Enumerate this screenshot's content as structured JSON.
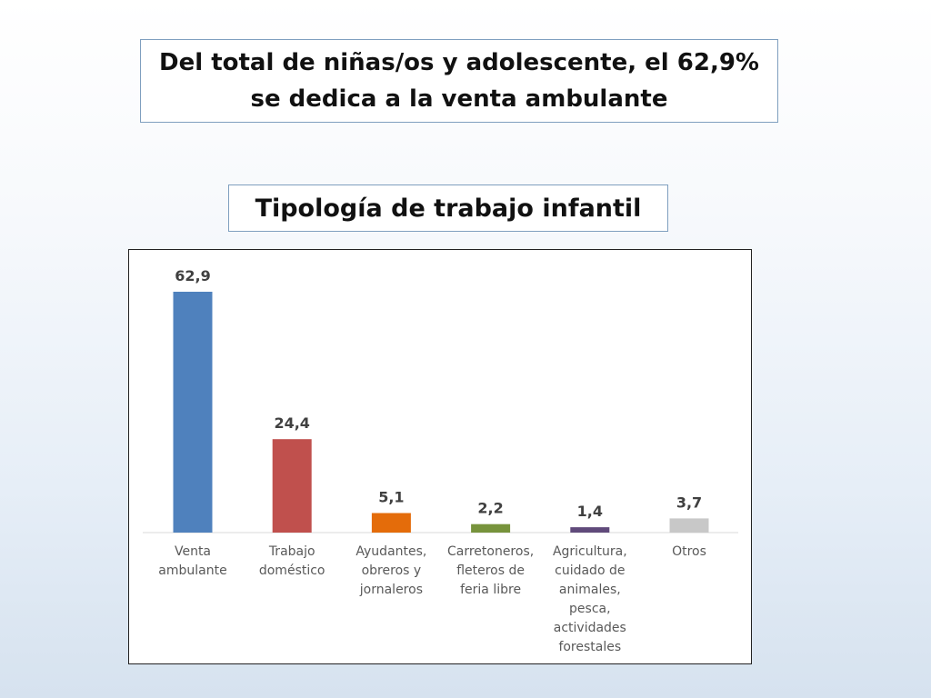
{
  "slide": {
    "headline": "Del total de niñas/os y adolescente, el 62,9% se dedica a la venta ambulante"
  },
  "chart_data": {
    "type": "bar",
    "title": "Tipología de trabajo infantil",
    "categories": [
      "Venta ambulante",
      "Trabajo doméstico",
      "Ayudantes, obreros y jornaleros",
      "Carretoneros, fleteros de feria libre",
      "Agricultura, cuidado de animales, pesca, actividades forestales",
      "Otros"
    ],
    "values": [
      62.9,
      24.4,
      5.1,
      2.2,
      1.4,
      3.7
    ],
    "value_labels": [
      "62,9",
      "24,4",
      "5,1",
      "2,2",
      "1,4",
      "3,7"
    ],
    "colors": [
      "#4f81bd",
      "#c0504d",
      "#e46c0a",
      "#77933c",
      "#604a7b",
      "#c8c8c8"
    ],
    "xlabel": "",
    "ylabel": "",
    "ylim": [
      0,
      62.9
    ],
    "grid": false,
    "legend": "none"
  }
}
